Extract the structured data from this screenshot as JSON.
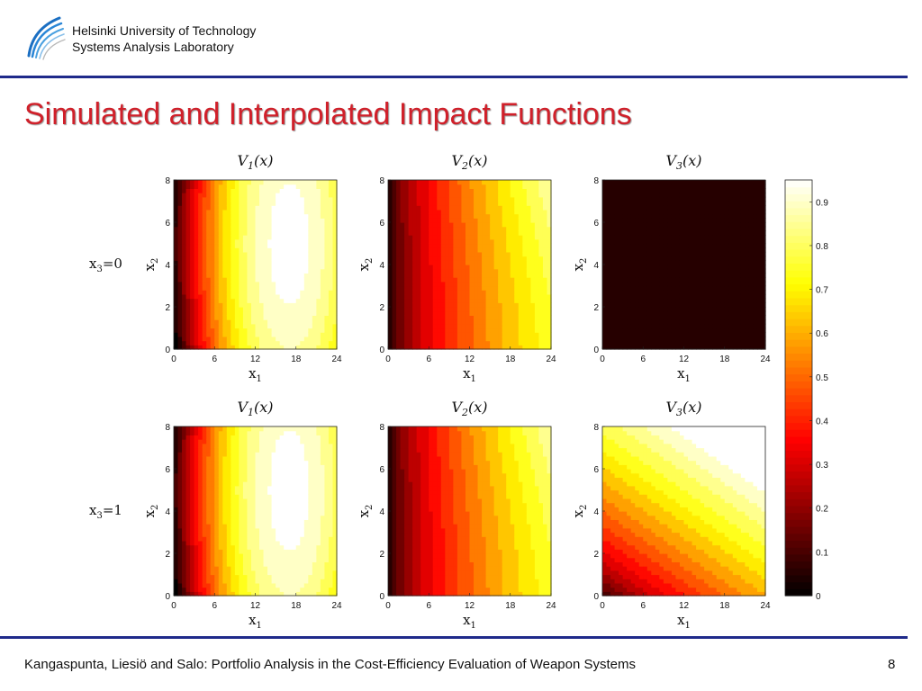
{
  "header": {
    "institution_line1": "Helsinki University of Technology",
    "institution_line2": "Systems Analysis Laboratory"
  },
  "slide": {
    "title": "Simulated and Interpolated Impact Functions",
    "footer": "Kangaspunta, Liesiö and Salo: Portfolio Analysis in the Cost-Efficiency Evaluation of Weapon Systems",
    "page_number": "8"
  },
  "rows": [
    {
      "label_var": "x",
      "label_sub": "3",
      "label_val": "=0"
    },
    {
      "label_var": "x",
      "label_sub": "3",
      "label_val": "=1"
    }
  ],
  "chart_data": {
    "type": "heatmap",
    "colormap": "hot",
    "x_label": "x",
    "x_label_sub": "1",
    "y_label": "x",
    "y_label_sub": "2",
    "x_ticks": [
      0,
      6,
      12,
      18,
      24
    ],
    "y_ticks": [
      0,
      2,
      4,
      6,
      8
    ],
    "xlim": [
      0,
      24
    ],
    "ylim": [
      0,
      8
    ],
    "colorbar": {
      "range": [
        0,
        0.95
      ],
      "ticks": [
        0,
        0.1,
        0.2,
        0.3,
        0.4,
        0.5,
        0.6,
        0.7,
        0.8,
        0.9
      ]
    },
    "panels": [
      {
        "row": 0,
        "col": 0,
        "title": "V",
        "title_sub": "1",
        "title_arg": "(x)",
        "model": "v1",
        "description_max": 0.95
      },
      {
        "row": 0,
        "col": 1,
        "title": "V",
        "title_sub": "2",
        "title_arg": "(x)",
        "model": "v2",
        "description_max": 0.8
      },
      {
        "row": 0,
        "col": 2,
        "title": "V",
        "title_sub": "3",
        "title_arg": "(x)",
        "model": "const",
        "constant_value": 0.06
      },
      {
        "row": 1,
        "col": 0,
        "title": "V",
        "title_sub": "1",
        "title_arg": "(x)",
        "model": "v1",
        "description_max": 0.95
      },
      {
        "row": 1,
        "col": 1,
        "title": "V",
        "title_sub": "2",
        "title_arg": "(x)",
        "model": "v2",
        "description_max": 0.8
      },
      {
        "row": 1,
        "col": 2,
        "title": "V",
        "title_sub": "3",
        "title_arg": "(x)",
        "model": "v3",
        "description_max": 0.95
      }
    ]
  }
}
